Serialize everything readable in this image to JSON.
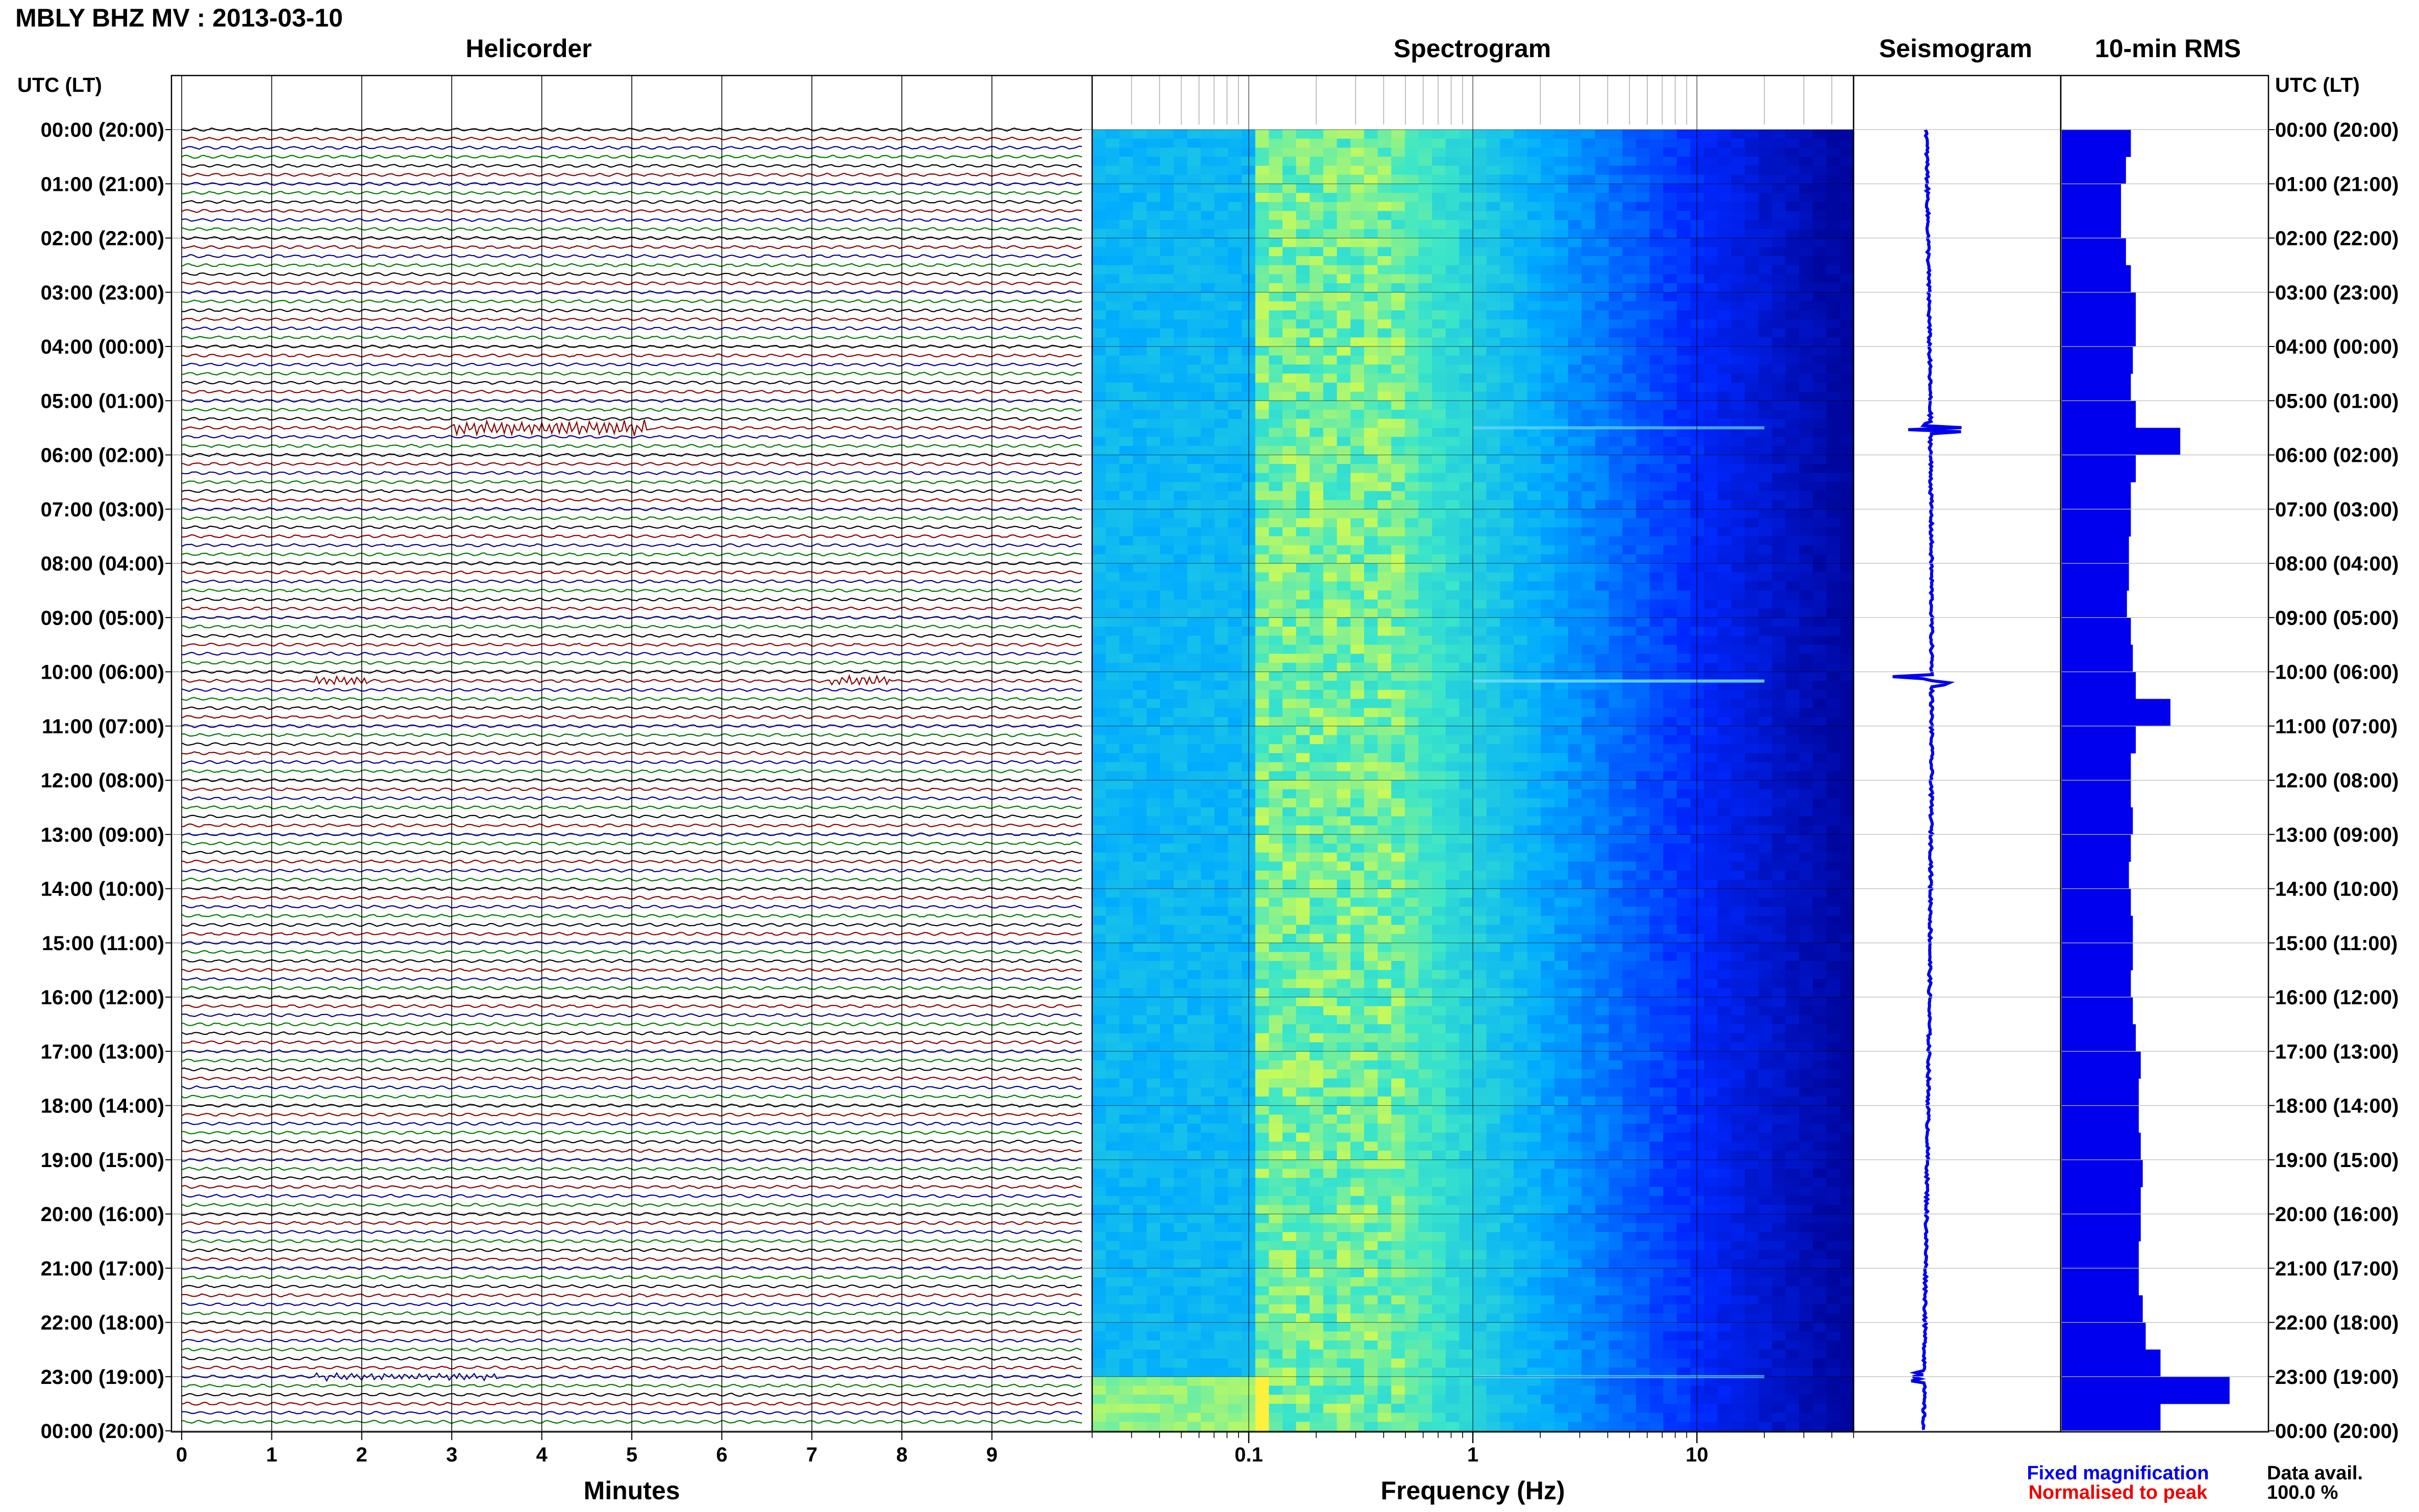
{
  "header": {
    "title": "MBLY BHZ MV : 2013-03-10"
  },
  "panels": {
    "helicorder": "Helicorder",
    "spectrogram": "Spectrogram",
    "seismogram": "Seismogram",
    "rms": "10-min RMS"
  },
  "axes": {
    "left_header": "UTC (LT)",
    "right_header": "UTC (LT)",
    "time_labels": [
      "00:00 (20:00)",
      "01:00 (21:00)",
      "02:00 (22:00)",
      "03:00 (23:00)",
      "04:00 (00:00)",
      "05:00 (01:00)",
      "06:00 (02:00)",
      "07:00 (03:00)",
      "08:00 (04:00)",
      "09:00 (05:00)",
      "10:00 (06:00)",
      "11:00 (07:00)",
      "12:00 (08:00)",
      "13:00 (09:00)",
      "14:00 (10:00)",
      "15:00 (11:00)",
      "16:00 (12:00)",
      "17:00 (13:00)",
      "18:00 (14:00)",
      "19:00 (15:00)",
      "20:00 (16:00)",
      "21:00 (17:00)",
      "22:00 (18:00)",
      "23:00 (19:00)",
      "00:00 (20:00)"
    ],
    "minutes_ticks": [
      "0",
      "1",
      "2",
      "3",
      "4",
      "5",
      "6",
      "7",
      "8",
      "9"
    ],
    "minutes_label": "Minutes",
    "frequency_ticks": [
      "0.1",
      "1",
      "10"
    ],
    "frequency_label": "Frequency (Hz)"
  },
  "legend": {
    "fixed": "Fixed magnification",
    "normalised": "Normalised to peak",
    "data_avail_label": "Data avail.",
    "data_avail_value": "100.0 %"
  },
  "colors": {
    "trace_cycle": [
      "#000000",
      "#8b0000",
      "#00008b",
      "#007a00"
    ],
    "fixed_magnification": "#0000ee",
    "normalised_to_peak": "#ee0000",
    "rms_bars": "#0000ee",
    "seismogram_trace": "#0000ee"
  },
  "chart_data": {
    "type": "heatmap",
    "station": "MBLY BHZ MV",
    "date": "2013-03-10",
    "helicorder": {
      "lines_per_hour": 6,
      "line_minutes": 10,
      "events": [
        {
          "hour": 5.5,
          "minute_start": 3.0,
          "minute_end": 5.2,
          "strength": "large"
        },
        {
          "hour": 10.17,
          "minute_start": 1.5,
          "minute_end": 2.1,
          "strength": "medium"
        },
        {
          "hour": 10.17,
          "minute_start": 7.2,
          "minute_end": 7.9,
          "strength": "medium"
        },
        {
          "hour": 23.0,
          "minute_start": 1.5,
          "minute_end": 3.5,
          "strength": "small"
        }
      ]
    },
    "spectrogram": {
      "x_scale": "log",
      "xlim_hz": [
        0.02,
        50
      ],
      "energy_peak_hz": [
        0.1,
        0.5
      ]
    },
    "rms_10min": {
      "hours": [
        0,
        0.5,
        1,
        1.5,
        2,
        2.5,
        3,
        3.5,
        4,
        4.5,
        5,
        5.5,
        6,
        6.5,
        7,
        7.5,
        8,
        8.5,
        9,
        9.5,
        10,
        10.5,
        11,
        11.5,
        12,
        12.5,
        13,
        13.5,
        14,
        14.5,
        15,
        15.5,
        16,
        16.5,
        17,
        17.5,
        18,
        18.5,
        19,
        19.5,
        20,
        20.5,
        21,
        21.5,
        22,
        22.5,
        23,
        23.5
      ],
      "values": [
        0.7,
        0.65,
        0.6,
        0.6,
        0.65,
        0.7,
        0.75,
        0.75,
        0.72,
        0.7,
        0.75,
        1.2,
        0.75,
        0.7,
        0.7,
        0.68,
        0.68,
        0.66,
        0.7,
        0.72,
        0.75,
        1.1,
        0.75,
        0.7,
        0.7,
        0.72,
        0.7,
        0.68,
        0.7,
        0.72,
        0.72,
        0.7,
        0.72,
        0.75,
        0.8,
        0.78,
        0.78,
        0.8,
        0.82,
        0.8,
        0.8,
        0.78,
        0.78,
        0.82,
        0.85,
        1.0,
        1.7,
        1.0
      ]
    }
  }
}
